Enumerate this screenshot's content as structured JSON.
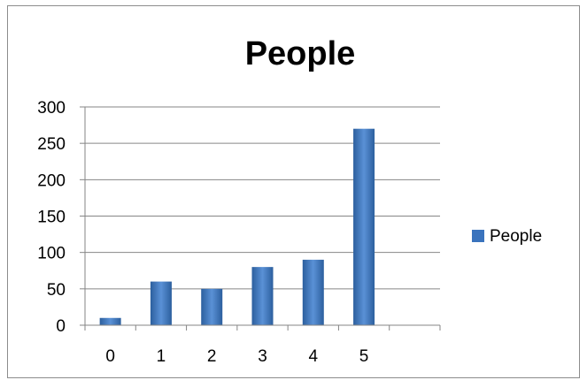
{
  "chart_data": {
    "type": "bar",
    "title": "People",
    "categories": [
      "0",
      "1",
      "2",
      "3",
      "4",
      "5",
      ""
    ],
    "series": [
      {
        "name": "People",
        "values": [
          10,
          60,
          50,
          80,
          90,
          270,
          null
        ]
      }
    ],
    "ylim": [
      0,
      300
    ],
    "yticks": [
      "0",
      "50",
      "100",
      "150",
      "200",
      "250",
      "300"
    ],
    "grid": true,
    "legend": "right",
    "colors": {
      "bar": "#3a73bd",
      "bar_light": "#5a91d6",
      "bar_dark": "#2c5f9e",
      "grid": "#868686",
      "axis": "#868686"
    }
  }
}
